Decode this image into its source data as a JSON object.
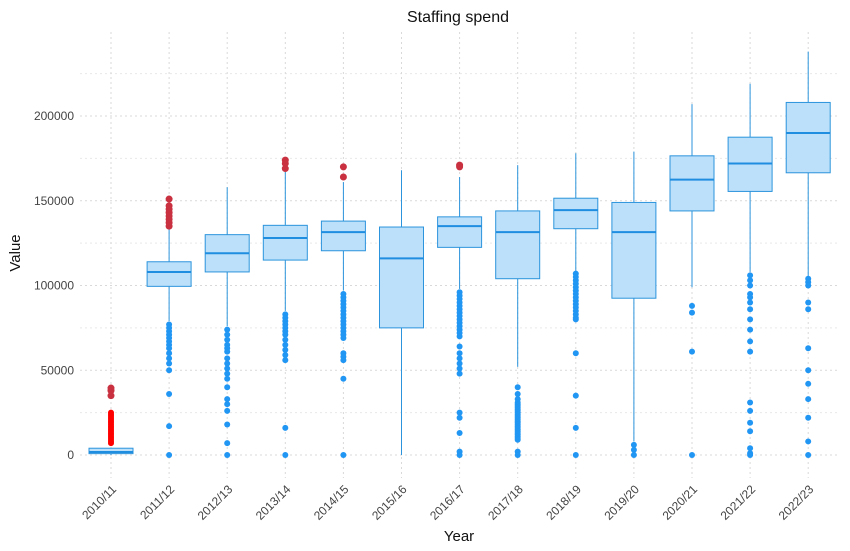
{
  "chart_data": {
    "type": "boxplot",
    "title": "Staffing spend",
    "xlabel": "Year",
    "ylabel": "Value",
    "ylim": [
      -15000,
      245000
    ],
    "yticks": [
      0,
      50000,
      100000,
      150000,
      200000
    ],
    "ytick_labels": [
      "0",
      "50000",
      "100000",
      "150000",
      "200000"
    ],
    "grid": true,
    "categories": [
      "2010/11",
      "2011/12",
      "2012/13",
      "2013/14",
      "2014/15",
      "2015/16",
      "2016/17",
      "2017/18",
      "2018/19",
      "2019/20",
      "2020/21",
      "2021/22",
      "2022/23"
    ],
    "colors": {
      "box_fill": "#bde0fa",
      "box_line": "#2b94dc",
      "median": "#1f8de0",
      "outlier": "#2196f3",
      "outlier_highlight": "#c93040",
      "outlier_extreme": "#ff0000"
    },
    "boxes": [
      {
        "q1": 800,
        "median": 1800,
        "q3": 4000,
        "whisker_low": 0,
        "whisker_high": 4000,
        "outliers": [],
        "outliers_highlight": [
          39500,
          38000,
          35000
        ],
        "outliers_extreme": [
          25000,
          24000,
          23000,
          22000,
          21000,
          20000,
          19000,
          18000,
          17000,
          16000,
          15000,
          14000,
          13000,
          12000,
          11000,
          10000,
          9000,
          8000,
          7000
        ]
      },
      {
        "q1": 99500,
        "median": 108000,
        "q3": 114000,
        "whisker_low": 79000,
        "whisker_high": 134000,
        "outliers": [
          77000,
          75000,
          73000,
          71000,
          69000,
          67000,
          65000,
          63000,
          60000,
          57000,
          54000,
          50000,
          36000,
          17000,
          0
        ],
        "outliers_highlight": [
          151000,
          147000,
          145000,
          143000,
          141000,
          139000,
          137000,
          135000
        ],
        "outliers_extreme": []
      },
      {
        "q1": 108000,
        "median": 119000,
        "q3": 130000,
        "whisker_low": 76000,
        "whisker_high": 158000,
        "outliers": [
          74000,
          71000,
          68000,
          65000,
          63000,
          61000,
          57000,
          54000,
          51000,
          48000,
          45000,
          40000,
          33000,
          30000,
          26000,
          18000,
          7000,
          0
        ],
        "outliers_highlight": [],
        "outliers_extreme": []
      },
      {
        "q1": 115000,
        "median": 128000,
        "q3": 135500,
        "whisker_low": 85000,
        "whisker_high": 167000,
        "outliers": [
          83000,
          81000,
          79000,
          77000,
          75000,
          73000,
          71000,
          68000,
          65000,
          62000,
          59000,
          56000,
          16000,
          0
        ],
        "outliers_highlight": [
          174000,
          172000,
          169000
        ],
        "outliers_extreme": []
      },
      {
        "q1": 120500,
        "median": 131500,
        "q3": 138000,
        "whisker_low": 97000,
        "whisker_high": 161000,
        "outliers": [
          95000,
          93000,
          91000,
          89000,
          87000,
          85000,
          83000,
          81000,
          79000,
          77000,
          75000,
          73000,
          71000,
          69000,
          60000,
          58000,
          56000,
          45000,
          0
        ],
        "outliers_highlight": [
          170000,
          164000
        ],
        "outliers_extreme": []
      },
      {
        "q1": 75000,
        "median": 116000,
        "q3": 134500,
        "whisker_low": 0,
        "whisker_high": 168000,
        "outliers": [],
        "outliers_highlight": [],
        "outliers_extreme": []
      },
      {
        "q1": 122500,
        "median": 135000,
        "q3": 140500,
        "whisker_low": 98000,
        "whisker_high": 164000,
        "outliers": [
          96000,
          94000,
          92000,
          90000,
          88000,
          86000,
          84000,
          82000,
          80000,
          78000,
          76000,
          74000,
          72000,
          70000,
          64000,
          60000,
          57000,
          54000,
          51000,
          48000,
          25000,
          22000,
          13000,
          2000,
          0
        ],
        "outliers_highlight": [
          171000,
          170000
        ],
        "outliers_extreme": []
      },
      {
        "q1": 104000,
        "median": 131500,
        "q3": 144000,
        "whisker_low": 52000,
        "whisker_high": 171000,
        "outliers": [
          40000,
          36000,
          33000,
          31000,
          30000,
          29000,
          28000,
          27000,
          26000,
          25000,
          24000,
          23000,
          22000,
          21000,
          20000,
          19000,
          18000,
          17000,
          16000,
          15000,
          14000,
          13000,
          12000,
          11000,
          10000,
          9000,
          2000,
          0
        ],
        "outliers_highlight": [],
        "outliers_extreme": []
      },
      {
        "q1": 133500,
        "median": 144500,
        "q3": 151500,
        "whisker_low": 108000,
        "whisker_high": 178000,
        "outliers": [
          107000,
          105000,
          103000,
          101000,
          99000,
          97000,
          95000,
          93000,
          91000,
          89000,
          87000,
          85000,
          83000,
          81000,
          80000,
          60000,
          35000,
          16000,
          0
        ],
        "outliers_highlight": [],
        "outliers_extreme": []
      },
      {
        "q1": 92500,
        "median": 131500,
        "q3": 149000,
        "whisker_low": 8000,
        "whisker_high": 179000,
        "outliers": [
          6000,
          3000,
          0
        ],
        "outliers_highlight": [],
        "outliers_extreme": []
      },
      {
        "q1": 144000,
        "median": 162500,
        "q3": 176500,
        "whisker_low": 99000,
        "whisker_high": 207000,
        "outliers": [
          88000,
          84000,
          61000,
          0
        ],
        "outliers_highlight": [],
        "outliers_extreme": []
      },
      {
        "q1": 155500,
        "median": 172000,
        "q3": 187500,
        "whisker_low": 108000,
        "whisker_high": 219000,
        "outliers": [
          106000,
          103000,
          100000,
          95000,
          93000,
          90000,
          86000,
          80000,
          74000,
          67000,
          61000,
          31000,
          26000,
          19000,
          14000,
          4000,
          1000,
          0
        ],
        "outliers_highlight": [],
        "outliers_extreme": []
      },
      {
        "q1": 166500,
        "median": 190000,
        "q3": 208000,
        "whisker_low": 105000,
        "whisker_high": 238000,
        "outliers": [
          104000,
          102000,
          100000,
          90000,
          86000,
          63000,
          50000,
          42000,
          33000,
          22000,
          8000,
          0
        ],
        "outliers_highlight": [],
        "outliers_extreme": []
      }
    ]
  }
}
